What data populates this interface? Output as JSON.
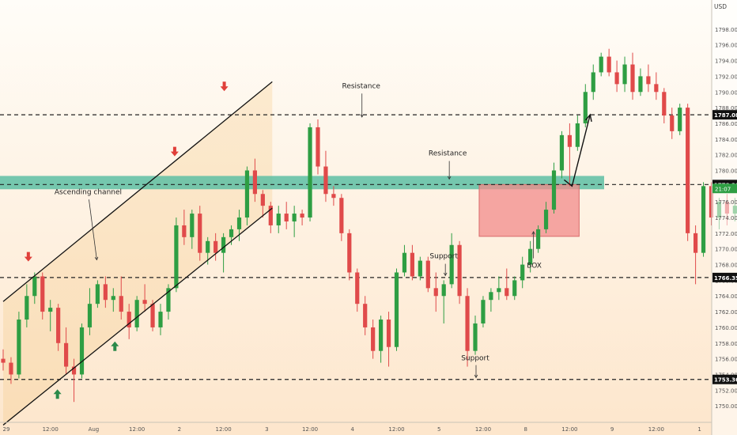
{
  "chart_data": {
    "type": "candlestick",
    "currency": "USD",
    "y_axis": {
      "ylim": [
        1747.9,
        1799.5
      ],
      "ticks": [
        1750,
        1752,
        1754,
        1756,
        1758,
        1760,
        1762,
        1764,
        1766,
        1768,
        1770,
        1772,
        1774,
        1776,
        1778,
        1780,
        1782,
        1784,
        1786,
        1788,
        1790,
        1792,
        1794,
        1796,
        1798
      ]
    },
    "x_axis": {
      "ticks": [
        {
          "label": "29",
          "pos": 0.4
        },
        {
          "label": "12:00",
          "pos": 6
        },
        {
          "label": "Aug",
          "pos": 11.5
        },
        {
          "label": "12:00",
          "pos": 17
        },
        {
          "label": "2",
          "pos": 22.4
        },
        {
          "label": "12:00",
          "pos": 28
        },
        {
          "label": "3",
          "pos": 33.5
        },
        {
          "label": "12:00",
          "pos": 39
        },
        {
          "label": "4",
          "pos": 44.4
        },
        {
          "label": "12:00",
          "pos": 50
        },
        {
          "label": "5",
          "pos": 55.4
        },
        {
          "label": "12:00",
          "pos": 61
        },
        {
          "label": "8",
          "pos": 66.4
        },
        {
          "label": "12:00",
          "pos": 72
        },
        {
          "label": "9",
          "pos": 77.4
        },
        {
          "label": "12:00",
          "pos": 83
        },
        {
          "label": "1",
          "pos": 88.5
        }
      ]
    },
    "candles": [
      [
        1756.0,
        1757.2,
        1754.5,
        1755.5
      ],
      [
        1755.5,
        1756.2,
        1752.8,
        1754.0
      ],
      [
        1754.0,
        1762.0,
        1753.5,
        1761.0
      ],
      [
        1761.0,
        1765.5,
        1760.0,
        1764.0
      ],
      [
        1764.0,
        1767.0,
        1763.0,
        1766.5
      ],
      [
        1766.5,
        1767.0,
        1761.0,
        1762.0
      ],
      [
        1762.0,
        1763.5,
        1759.5,
        1762.5
      ],
      [
        1762.5,
        1763.0,
        1757.0,
        1758.0
      ],
      [
        1758.0,
        1760.0,
        1754.0,
        1755.0
      ],
      [
        1755.0,
        1756.0,
        1750.5,
        1754.0
      ],
      [
        1754.0,
        1760.5,
        1753.5,
        1760.0
      ],
      [
        1760.0,
        1765.0,
        1759.0,
        1763.0
      ],
      [
        1763.0,
        1766.0,
        1762.5,
        1765.5
      ],
      [
        1765.5,
        1766.5,
        1762.5,
        1763.5
      ],
      [
        1763.5,
        1765.0,
        1762.0,
        1764.0
      ],
      [
        1764.0,
        1766.5,
        1761.0,
        1762.0
      ],
      [
        1762.0,
        1763.0,
        1758.5,
        1760.0
      ],
      [
        1760.0,
        1764.0,
        1759.5,
        1763.5
      ],
      [
        1763.5,
        1765.5,
        1762.0,
        1763.0
      ],
      [
        1763.0,
        1763.5,
        1759.5,
        1760.0
      ],
      [
        1760.0,
        1763.0,
        1759.0,
        1762.0
      ],
      [
        1762.0,
        1765.5,
        1761.0,
        1765.0
      ],
      [
        1765.0,
        1774.0,
        1764.5,
        1773.0
      ],
      [
        1773.0,
        1775.0,
        1770.5,
        1771.5
      ],
      [
        1771.5,
        1775.0,
        1770.0,
        1774.5
      ],
      [
        1774.5,
        1775.5,
        1768.5,
        1769.5
      ],
      [
        1769.5,
        1771.5,
        1768.0,
        1771.0
      ],
      [
        1771.0,
        1772.0,
        1768.5,
        1769.5
      ],
      [
        1769.5,
        1772.0,
        1767.0,
        1771.5
      ],
      [
        1771.5,
        1773.0,
        1770.5,
        1772.5
      ],
      [
        1772.5,
        1775.0,
        1771.0,
        1774.0
      ],
      [
        1774.0,
        1780.5,
        1773.0,
        1780.0
      ],
      [
        1780.0,
        1781.5,
        1776.0,
        1777.0
      ],
      [
        1777.0,
        1777.5,
        1774.0,
        1775.5
      ],
      [
        1775.5,
        1776.0,
        1772.0,
        1773.0
      ],
      [
        1773.0,
        1775.5,
        1772.0,
        1774.5
      ],
      [
        1774.5,
        1776.0,
        1772.5,
        1773.5
      ],
      [
        1773.5,
        1775.5,
        1771.5,
        1774.5
      ],
      [
        1774.5,
        1775.0,
        1773.0,
        1774.0
      ],
      [
        1774.0,
        1786.0,
        1773.5,
        1785.5
      ],
      [
        1785.5,
        1786.5,
        1779.5,
        1780.5
      ],
      [
        1780.5,
        1782.5,
        1776.0,
        1777.0
      ],
      [
        1777.0,
        1778.0,
        1775.5,
        1776.5
      ],
      [
        1776.5,
        1777.0,
        1771.0,
        1772.0
      ],
      [
        1772.0,
        1772.5,
        1766.0,
        1767.0
      ],
      [
        1767.0,
        1767.5,
        1762.0,
        1763.0
      ],
      [
        1763.0,
        1764.0,
        1759.0,
        1760.0
      ],
      [
        1760.0,
        1761.0,
        1756.0,
        1757.0
      ],
      [
        1757.0,
        1761.5,
        1755.5,
        1761.0
      ],
      [
        1761.0,
        1762.0,
        1755.0,
        1757.5
      ],
      [
        1757.5,
        1767.5,
        1757.0,
        1767.0
      ],
      [
        1767.0,
        1770.5,
        1766.5,
        1769.5
      ],
      [
        1769.5,
        1770.5,
        1766.0,
        1766.5
      ],
      [
        1766.5,
        1769.0,
        1766.0,
        1768.5
      ],
      [
        1768.5,
        1769.0,
        1764.5,
        1765.0
      ],
      [
        1765.0,
        1767.0,
        1762.0,
        1764.0
      ],
      [
        1764.0,
        1766.0,
        1760.5,
        1765.5
      ],
      [
        1765.5,
        1772.0,
        1765.0,
        1770.5
      ],
      [
        1770.5,
        1771.0,
        1763.0,
        1764.0
      ],
      [
        1764.0,
        1765.0,
        1755.0,
        1757.0
      ],
      [
        1757.0,
        1761.5,
        1756.5,
        1760.5
      ],
      [
        1760.5,
        1764.0,
        1760.0,
        1763.5
      ],
      [
        1763.5,
        1765.0,
        1762.0,
        1764.5
      ],
      [
        1764.5,
        1766.5,
        1763.5,
        1765.0
      ],
      [
        1765.0,
        1767.5,
        1763.5,
        1764.0
      ],
      [
        1764.0,
        1766.5,
        1763.5,
        1766.0
      ],
      [
        1766.0,
        1769.0,
        1765.0,
        1768.0
      ],
      [
        1768.0,
        1771.0,
        1767.0,
        1770.0
      ],
      [
        1770.0,
        1773.0,
        1769.5,
        1772.5
      ],
      [
        1772.5,
        1776.0,
        1772.0,
        1775.0
      ],
      [
        1775.0,
        1781.0,
        1774.5,
        1780.0
      ],
      [
        1780.0,
        1785.0,
        1779.0,
        1784.5
      ],
      [
        1784.5,
        1786.0,
        1778.0,
        1783.0
      ],
      [
        1783.0,
        1787.0,
        1782.5,
        1786.0
      ],
      [
        1786.0,
        1791.0,
        1785.5,
        1790.0
      ],
      [
        1790.0,
        1793.5,
        1789.0,
        1792.5
      ],
      [
        1792.5,
        1795.0,
        1792.0,
        1794.5
      ],
      [
        1794.5,
        1795.5,
        1792.0,
        1792.5
      ],
      [
        1792.5,
        1794.0,
        1790.0,
        1791.0
      ],
      [
        1791.0,
        1794.5,
        1790.0,
        1793.5
      ],
      [
        1793.5,
        1795.0,
        1789.0,
        1790.0
      ],
      [
        1790.0,
        1793.0,
        1789.5,
        1792.0
      ],
      [
        1792.0,
        1793.5,
        1790.0,
        1791.0
      ],
      [
        1791.0,
        1792.5,
        1789.0,
        1790.0
      ],
      [
        1790.0,
        1790.5,
        1786.0,
        1787.0
      ],
      [
        1787.0,
        1788.0,
        1784.0,
        1785.0
      ],
      [
        1785.0,
        1788.5,
        1784.5,
        1788.0
      ],
      [
        1788.0,
        1788.5,
        1771.0,
        1772.0
      ],
      [
        1772.0,
        1773.0,
        1765.5,
        1769.5
      ],
      [
        1769.5,
        1778.5,
        1769.0,
        1778.0
      ],
      [
        1778.0,
        1778.5,
        1773.0,
        1774.0
      ],
      [
        1774.0,
        1776.5,
        1772.5,
        1776.0
      ],
      [
        1776.0,
        1777.0,
        1773.0,
        1774.5
      ],
      [
        1774.5,
        1776.5,
        1773.5,
        1775.5
      ],
      [
        1775.5,
        1776.0,
        1773.0,
        1774.0
      ],
      [
        1774.0,
        1776.0,
        1773.0,
        1775.5
      ],
      [
        1775.5,
        1776.5,
        1774.5,
        1775.0
      ],
      [
        1775.0,
        1777.0,
        1772.5,
        1773.5
      ],
      [
        1773.5,
        1776.5,
        1773.0,
        1776.0
      ],
      [
        1776.0,
        1778.5,
        1775.0,
        1777.5
      ],
      [
        1777.5,
        1778.0,
        1774.0,
        1775.0
      ],
      [
        1775.0,
        1777.5,
        1774.0,
        1777.0
      ]
    ],
    "channel": {
      "name": "Ascending channel",
      "lower": [
        [
          5.5,
          1752.0
        ],
        [
          34.2,
          1775.2
        ]
      ],
      "upper": [
        [
          0,
          1763.3
        ],
        [
          34.2,
          1791.3
        ]
      ]
    },
    "levels": [
      {
        "value": 1787.088,
        "label": "1787.088",
        "style": "dashed"
      },
      {
        "value": 1778.202,
        "label": "1778.202",
        "style": "dashed"
      },
      {
        "value": 1766.354,
        "label": "1766.354",
        "style": "dashed"
      },
      {
        "value": 1753.368,
        "label": "1753.368",
        "style": "dashed"
      }
    ],
    "current_price_label": "21:07",
    "zones": [
      {
        "type": "band",
        "y": [
          1777.6,
          1779.3
        ],
        "color": "#5dbea3"
      },
      {
        "type": "box",
        "label": "BOX",
        "x": [
          60.5,
          73.2
        ],
        "y": [
          1771.6,
          1778.2
        ],
        "color": "#f28b8b"
      }
    ],
    "annotations": [
      {
        "text": "Resistance",
        "x": 45.5,
        "y": 1790.5
      },
      {
        "text": "Resistance",
        "x": 56.5,
        "y": 1781.9
      },
      {
        "text": "Support",
        "x": 56,
        "y": 1768.8
      },
      {
        "text": "Support",
        "x": 60,
        "y": 1755.8
      },
      {
        "text": "BOX",
        "x": 67.5,
        "y": 1767.6
      },
      {
        "text": "Ascending channel",
        "x": 10.8,
        "y": 1777.0
      }
    ],
    "arrows": [
      {
        "dir": "down",
        "x": 3.2,
        "y": 1768.7,
        "color": "#e0403a"
      },
      {
        "dir": "down",
        "x": 21.8,
        "y": 1782.1,
        "color": "#e0403a"
      },
      {
        "dir": "down",
        "x": 28.1,
        "y": 1790.4,
        "color": "#e0403a"
      },
      {
        "dir": "up",
        "x": 6.9,
        "y": 1751.8,
        "color": "#2b8a4a"
      },
      {
        "dir": "up",
        "x": 14.2,
        "y": 1757.9,
        "color": "#2b8a4a"
      }
    ],
    "projection": [
      [
        71.3,
        1778.8
      ],
      [
        72.3,
        1778.0
      ],
      [
        74.6,
        1787.1
      ]
    ],
    "colors": {
      "up": "#26a69a",
      "down": "#ef5350",
      "up_body": "#2e9e43",
      "down_body": "#e04a4a"
    }
  }
}
